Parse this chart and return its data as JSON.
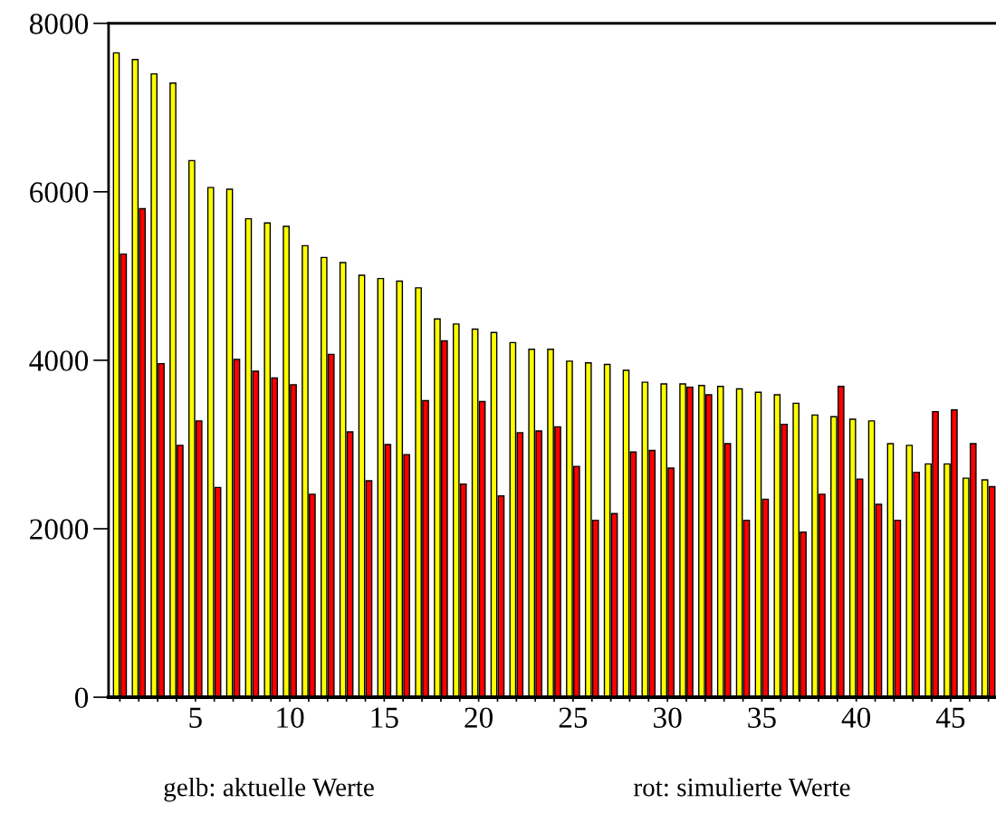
{
  "chart_data": {
    "type": "bar",
    "x": [
      1,
      2,
      3,
      4,
      5,
      6,
      7,
      8,
      9,
      10,
      11,
      12,
      13,
      14,
      15,
      16,
      17,
      18,
      19,
      20,
      21,
      22,
      23,
      24,
      25,
      26,
      27,
      28,
      29,
      30,
      31,
      32,
      33,
      34,
      35,
      36,
      37,
      38,
      39,
      40,
      41,
      42,
      43,
      44,
      45,
      46,
      47
    ],
    "series": [
      {
        "color": "#ffff00",
        "values": [
          7650,
          7570,
          7400,
          7290,
          6370,
          6050,
          6030,
          5680,
          5630,
          5590,
          5360,
          5220,
          5160,
          5010,
          4970,
          4940,
          4860,
          4490,
          4430,
          4370,
          4330,
          4210,
          4130,
          4130,
          3990,
          3970,
          3950,
          3880,
          3740,
          3720,
          3720,
          3700,
          3690,
          3660,
          3620,
          3590,
          3490,
          3350,
          3330,
          3300,
          3280,
          3010,
          2990,
          2770,
          2770,
          2600,
          2580
        ]
      },
      {
        "color": "#ff0000",
        "values": [
          5260,
          5800,
          3960,
          2990,
          3280,
          2490,
          4010,
          3870,
          3790,
          3710,
          2410,
          4070,
          3150,
          2570,
          3000,
          2880,
          3520,
          4230,
          2530,
          3510,
          2390,
          3140,
          3160,
          3210,
          2740,
          2100,
          2180,
          2910,
          2930,
          2720,
          3680,
          3590,
          3010,
          2100,
          2350,
          3240,
          1960,
          2410,
          3690,
          2590,
          2290,
          2100,
          2670,
          3390,
          3410,
          3010,
          2500
        ]
      }
    ],
    "xlim": [
      0.4,
      47.4
    ],
    "ylim": [
      0,
      8000
    ],
    "xticks": [
      {
        "value": 1,
        "label": null
      },
      {
        "value": 2,
        "label": null
      },
      {
        "value": 3,
        "label": null
      },
      {
        "value": 4,
        "label": null
      },
      5,
      {
        "value": 6,
        "label": null
      },
      {
        "value": 7,
        "label": null
      },
      {
        "value": 8,
        "label": null
      },
      {
        "value": 9,
        "label": null
      },
      10,
      {
        "value": 11,
        "label": null
      },
      {
        "value": 12,
        "label": null
      },
      {
        "value": 13,
        "label": null
      },
      {
        "value": 14,
        "label": null
      },
      15,
      {
        "value": 16,
        "label": null
      },
      {
        "value": 17,
        "label": null
      },
      {
        "value": 18,
        "label": null
      },
      {
        "value": 19,
        "label": null
      },
      20,
      {
        "value": 21,
        "label": null
      },
      {
        "value": 22,
        "label": null
      },
      {
        "value": 23,
        "label": null
      },
      {
        "value": 24,
        "label": null
      },
      25,
      {
        "value": 26,
        "label": null
      },
      {
        "value": 27,
        "label": null
      },
      {
        "value": 28,
        "label": null
      },
      {
        "value": 29,
        "label": null
      },
      30,
      {
        "value": 31,
        "label": null
      },
      {
        "value": 32,
        "label": null
      },
      {
        "value": 33,
        "label": null
      },
      {
        "value": 34,
        "label": null
      },
      35,
      {
        "value": 36,
        "label": null
      },
      {
        "value": 37,
        "label": null
      },
      {
        "value": 38,
        "label": null
      },
      {
        "value": 39,
        "label": null
      },
      40,
      {
        "value": 41,
        "label": null
      },
      {
        "value": 42,
        "label": null
      },
      {
        "value": 43,
        "label": null
      },
      {
        "value": 44,
        "label": null
      },
      45,
      {
        "value": 46,
        "label": null
      },
      {
        "value": 47,
        "label": null
      }
    ],
    "yticks": [
      0,
      2000,
      4000,
      6000,
      8000
    ],
    "grid": false,
    "annotations": [
      "gelb: aktuelle Werte",
      "rot: simulierte Werte"
    ]
  }
}
